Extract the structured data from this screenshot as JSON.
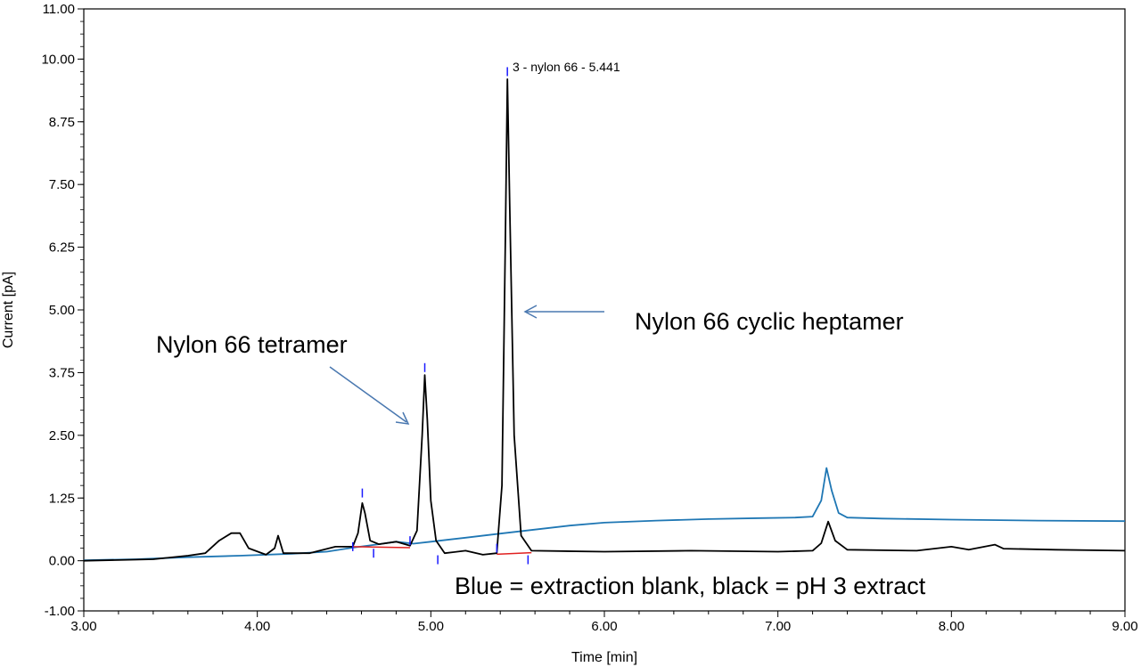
{
  "chart_data": {
    "type": "line",
    "title": "",
    "xlabel": "Time [min]",
    "ylabel": "Current [pA]",
    "xlim": [
      3.0,
      9.0
    ],
    "ylim": [
      -1.0,
      11.0
    ],
    "x_ticks": [
      "3.00",
      "4.00",
      "5.00",
      "6.00",
      "7.00",
      "8.00",
      "9.00"
    ],
    "y_ticks": [
      "-1.00",
      "0.00",
      "1.25",
      "2.50",
      "3.75",
      "5.00",
      "6.25",
      "7.50",
      "8.75",
      "10.00",
      "11.00"
    ],
    "grid": false,
    "series": [
      {
        "key": "blank",
        "color": "#1f77b4",
        "points": [
          [
            3.0,
            0.01
          ],
          [
            3.3,
            0.03
          ],
          [
            3.6,
            0.07
          ],
          [
            3.9,
            0.1
          ],
          [
            4.2,
            0.14
          ],
          [
            4.4,
            0.18
          ],
          [
            4.55,
            0.26
          ],
          [
            4.7,
            0.33
          ],
          [
            4.8,
            0.38
          ],
          [
            4.9,
            0.34
          ],
          [
            5.0,
            0.38
          ],
          [
            5.2,
            0.46
          ],
          [
            5.4,
            0.54
          ],
          [
            5.6,
            0.62
          ],
          [
            5.8,
            0.7
          ],
          [
            6.0,
            0.76
          ],
          [
            6.3,
            0.8
          ],
          [
            6.6,
            0.83
          ],
          [
            6.9,
            0.85
          ],
          [
            7.1,
            0.86
          ],
          [
            7.2,
            0.88
          ],
          [
            7.25,
            1.2
          ],
          [
            7.28,
            1.85
          ],
          [
            7.31,
            1.4
          ],
          [
            7.35,
            0.95
          ],
          [
            7.4,
            0.86
          ],
          [
            7.6,
            0.84
          ],
          [
            8.0,
            0.82
          ],
          [
            8.5,
            0.8
          ],
          [
            9.0,
            0.79
          ]
        ]
      },
      {
        "key": "extract",
        "color": "#000000",
        "points": [
          [
            3.0,
            0.0
          ],
          [
            3.4,
            0.03
          ],
          [
            3.6,
            0.1
          ],
          [
            3.7,
            0.15
          ],
          [
            3.78,
            0.4
          ],
          [
            3.85,
            0.55
          ],
          [
            3.9,
            0.55
          ],
          [
            3.95,
            0.25
          ],
          [
            4.05,
            0.12
          ],
          [
            4.1,
            0.25
          ],
          [
            4.12,
            0.5
          ],
          [
            4.15,
            0.15
          ],
          [
            4.3,
            0.15
          ],
          [
            4.45,
            0.28
          ],
          [
            4.5,
            0.28
          ],
          [
            4.55,
            0.28
          ],
          [
            4.58,
            0.55
          ],
          [
            4.605,
            1.15
          ],
          [
            4.62,
            0.95
          ],
          [
            4.65,
            0.4
          ],
          [
            4.7,
            0.33
          ],
          [
            4.8,
            0.38
          ],
          [
            4.88,
            0.3
          ],
          [
            4.92,
            0.6
          ],
          [
            4.95,
            2.5
          ],
          [
            4.965,
            3.7
          ],
          [
            4.98,
            2.8
          ],
          [
            5.0,
            1.2
          ],
          [
            5.03,
            0.4
          ],
          [
            5.08,
            0.15
          ],
          [
            5.2,
            0.2
          ],
          [
            5.3,
            0.12
          ],
          [
            5.38,
            0.15
          ],
          [
            5.41,
            1.5
          ],
          [
            5.43,
            6.5
          ],
          [
            5.441,
            9.6
          ],
          [
            5.455,
            7.0
          ],
          [
            5.48,
            2.5
          ],
          [
            5.52,
            0.5
          ],
          [
            5.58,
            0.2
          ],
          [
            6.0,
            0.18
          ],
          [
            6.5,
            0.2
          ],
          [
            7.0,
            0.18
          ],
          [
            7.2,
            0.2
          ],
          [
            7.25,
            0.35
          ],
          [
            7.29,
            0.78
          ],
          [
            7.33,
            0.4
          ],
          [
            7.4,
            0.22
          ],
          [
            7.8,
            0.2
          ],
          [
            8.0,
            0.28
          ],
          [
            8.1,
            0.22
          ],
          [
            8.25,
            0.32
          ],
          [
            8.3,
            0.24
          ],
          [
            8.6,
            0.22
          ],
          [
            9.0,
            0.2
          ]
        ]
      }
    ],
    "peak_label": {
      "text": "3 - nylon 66 - 5.441",
      "x": 5.441,
      "y": 9.8
    },
    "annotations": [
      {
        "key": "tetramer",
        "text": "Nylon 66 tetramer",
        "arrow_to": [
          4.88,
          2.7
        ]
      },
      {
        "key": "heptamer",
        "text": "Nylon 66 cyclic heptamer",
        "arrow_to": [
          5.55,
          4.95
        ]
      },
      {
        "key": "legend",
        "text": "Blue = extraction blank, black = pH 3 extract"
      }
    ]
  }
}
